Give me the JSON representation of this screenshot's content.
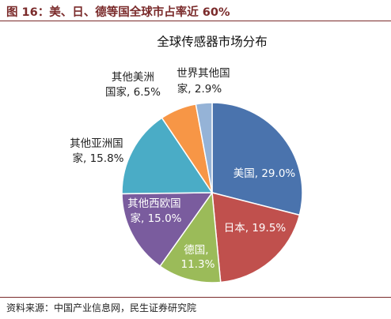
{
  "figure_title": "图 16：美、日、德等国全球市占率近 60%",
  "source_text": "资料来源：中国产业信息网，民生证券研究院",
  "chart_data": {
    "type": "pie",
    "title": "全球传感器市场分布",
    "slices": [
      {
        "label": "美国",
        "value": 29.0,
        "value_text": "29.0%",
        "color": "#4a73ad",
        "text_color": "#ffffff"
      },
      {
        "label": "日本",
        "value": 19.5,
        "value_text": "19.5%",
        "color": "#c0504d",
        "text_color": "#ffffff"
      },
      {
        "label": "德国",
        "value": 11.3,
        "value_text": "11.3%",
        "color": "#9bbb59",
        "text_color": "#ffffff"
      },
      {
        "label": "其他西欧国家",
        "value": 15.0,
        "value_text": "15.0%",
        "color": "#7a5c9e",
        "text_color": "#ffffff"
      },
      {
        "label": "其他亚洲国家",
        "value": 15.8,
        "value_text": "15.8%",
        "color": "#4aacc6",
        "text_color": "#222222"
      },
      {
        "label": "其他美洲国家",
        "value": 6.5,
        "value_text": "6.5%",
        "color": "#f79646",
        "text_color": "#222222"
      },
      {
        "label": "世界其他国家",
        "value": 2.9,
        "value_text": "2.9%",
        "color": "#95b3d7",
        "text_color": "#222222"
      }
    ],
    "start_angle_deg": 0,
    "direction": "clockwise",
    "colors": {
      "title_rule": "#7a2a2a"
    }
  }
}
